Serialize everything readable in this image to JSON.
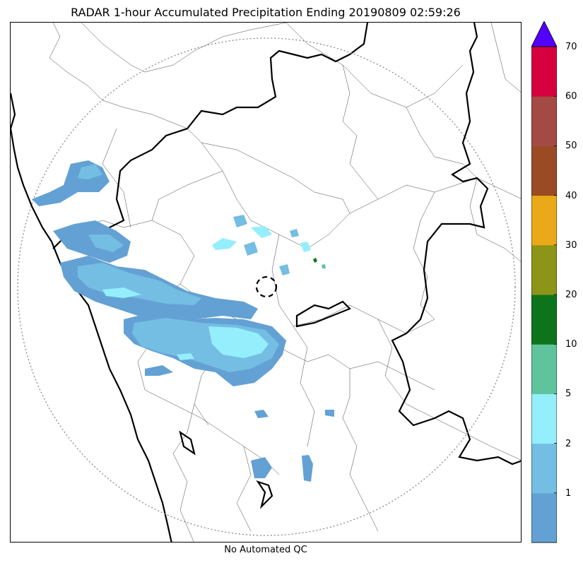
{
  "title": "RADAR 1-hour Accumulated Precipitation Ending 20190809 02:59:26",
  "xlabel": "No Automated QC",
  "chart_data": {
    "type": "heatmap",
    "title": "RADAR 1-hour Accumulated Precipitation Ending 20190809 02:59:26",
    "xlabel": "No Automated QC",
    "colorbar": {
      "levels": [
        0,
        1,
        2,
        5,
        10,
        20,
        30,
        40,
        50,
        60,
        70
      ],
      "tick_labels": [
        "1",
        "2",
        "5",
        "10",
        "20",
        "30",
        "40",
        "50",
        "60",
        "70"
      ],
      "extend": "max",
      "colors": [
        "#63a1d4",
        "#74bde3",
        "#94eefc",
        "#5fc49b",
        "#0e741c",
        "#8c9518",
        "#e9a918",
        "#9a4b24",
        "#a44a44",
        "#d7003f"
      ],
      "over_color": "#5000fc"
    },
    "range_ring": "dotted",
    "radar_marker": "dashed circle",
    "precip_areas": [
      {
        "region": "west coast band",
        "max_class": 5
      },
      {
        "region": "central south band",
        "max_class": 5
      },
      {
        "region": "isolated cells north-east of radar",
        "max_class": 20
      }
    ]
  }
}
